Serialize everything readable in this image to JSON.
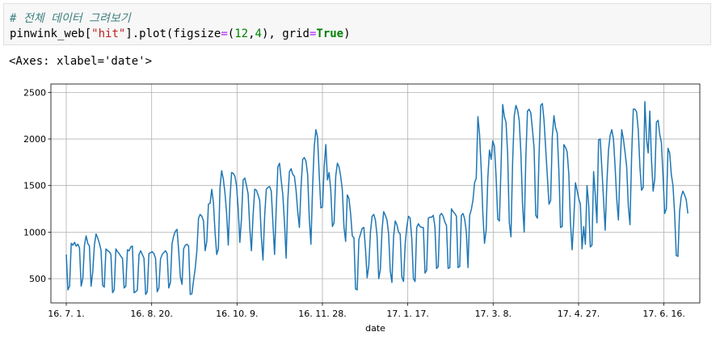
{
  "cell": {
    "comment": "# 전체 데이터 그려보기",
    "code": {
      "var": "pinwink_web[",
      "key": "\"hit\"",
      "mid": "].plot(figsize",
      "eq1": "=",
      "open": "(",
      "n1": "12",
      "comma": ",",
      "n2": "4",
      "close": "), grid",
      "eq2": "=",
      "kw": "True",
      "end": ")"
    }
  },
  "output": {
    "repr": "<Axes: xlabel='date'>"
  },
  "chart_data": {
    "type": "line",
    "xlabel": "date",
    "ylabel": "",
    "grid": true,
    "x_ticks": [
      "16. 7. 1.",
      "16. 8. 20.",
      "16. 10. 9.",
      "16. 11. 28.",
      "17. 1. 17.",
      "17. 3. 8.",
      "17. 4. 27.",
      "17. 6. 16."
    ],
    "y_ticks": [
      500,
      1000,
      1500,
      2000,
      2500
    ],
    "xlim": [
      "2016-06-22",
      "2017-07-07"
    ],
    "ylim": [
      240,
      2590
    ],
    "line_color": "#1f77b4",
    "series": [
      {
        "start_date": "2016-07-01",
        "end_date": "2017-06-30",
        "values": [
          760,
          380,
          420,
          880,
          860,
          890,
          850,
          870,
          830,
          420,
          500,
          860,
          960,
          880,
          850,
          420,
          570,
          860,
          980,
          940,
          880,
          810,
          430,
          410,
          820,
          800,
          790,
          760,
          350,
          380,
          820,
          790,
          770,
          740,
          720,
          400,
          420,
          810,
          800,
          840,
          850,
          350,
          360,
          380,
          760,
          800,
          760,
          720,
          330,
          360,
          770,
          780,
          790,
          770,
          720,
          360,
          400,
          710,
          760,
          780,
          800,
          770,
          400,
          460,
          880,
          960,
          1010,
          1030,
          800,
          520,
          440,
          820,
          860,
          870,
          850,
          330,
          340,
          480,
          610,
          800,
          1150,
          1190,
          1170,
          1120,
          800,
          900,
          1300,
          1310,
          1460,
          1320,
          1000,
          760,
          820,
          1480,
          1660,
          1570,
          1420,
          1200,
          860,
          1350,
          1640,
          1630,
          1600,
          1500,
          1250,
          890,
          1150,
          1560,
          1580,
          1500,
          1410,
          1050,
          800,
          1180,
          1460,
          1450,
          1400,
          1340,
          950,
          700,
          1170,
          1460,
          1480,
          1490,
          1440,
          1100,
          760,
          1250,
          1700,
          1740,
          1560,
          1400,
          1100,
          720,
          1340,
          1650,
          1680,
          1620,
          1600,
          1450,
          1220,
          1050,
          1480,
          1780,
          1800,
          1760,
          1620,
          1150,
          870,
          1480,
          1920,
          2100,
          2020,
          1620,
          1260,
          1270,
          1700,
          1940,
          1560,
          1640,
          1450,
          1060,
          1100,
          1600,
          1740,
          1700,
          1600,
          1450,
          1050,
          900,
          1400,
          1360,
          1200,
          960,
          940,
          390,
          380,
          920,
          980,
          1040,
          1050,
          820,
          510,
          640,
          1000,
          1170,
          1190,
          1130,
          960,
          500,
          600,
          1020,
          1220,
          1180,
          1130,
          980,
          580,
          460,
          950,
          1120,
          1080,
          1000,
          980,
          520,
          470,
          870,
          1060,
          1170,
          1150,
          930,
          500,
          470,
          1050,
          1090,
          1060,
          1050,
          1050,
          560,
          590,
          1150,
          1160,
          1160,
          1180,
          1060,
          610,
          630,
          1180,
          1200,
          1170,
          1110,
          1070,
          610,
          620,
          1250,
          1220,
          1200,
          1170,
          620,
          630,
          1180,
          1200,
          1140,
          1000,
          620,
          1180,
          1240,
          1340,
          1530,
          1580,
          2240,
          2050,
          1680,
          1200,
          880,
          1020,
          1580,
          1880,
          1780,
          1980,
          1920,
          1600,
          1140,
          1120,
          1700,
          2370,
          2240,
          2180,
          1840,
          1100,
          950,
          1750,
          2250,
          2360,
          2310,
          2200,
          1850,
          1300,
          1000,
          1800,
          2300,
          2320,
          2280,
          2100,
          1900,
          1180,
          1150,
          1830,
          2360,
          2380,
          2200,
          1900,
          1600,
          1300,
          1340,
          2020,
          2250,
          2120,
          2060,
          1650,
          1050,
          1060,
          1940,
          1910,
          1860,
          1620,
          1100,
          810,
          1130,
          1530,
          1450,
          1360,
          1300,
          820,
          1060,
          870,
          1500,
          1300,
          840,
          860,
          1650,
          1400,
          1100,
          1990,
          2000,
          1680,
          1350,
          1020,
          1520,
          1880,
          2040,
          2100,
          2000,
          1700,
          1350,
          1130,
          1700,
          2100,
          2000,
          1860,
          1700,
          1280,
          1080,
          1820,
          2320,
          2320,
          2290,
          2100,
          1700,
          1450,
          1480,
          2400,
          2000,
          1850,
          2300,
          1780,
          1440,
          1570,
          2180,
          2200,
          2050,
          1960,
          1600,
          1200,
          1250,
          1900,
          1850,
          1620,
          1500,
          1200,
          750,
          740,
          1220,
          1380,
          1440,
          1400,
          1350,
          1200
        ]
      }
    ]
  }
}
